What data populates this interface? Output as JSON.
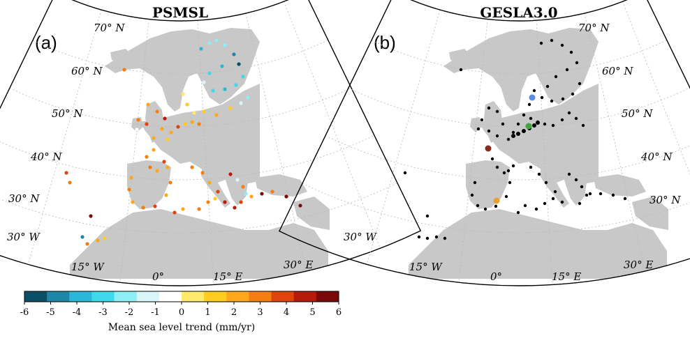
{
  "panels": [
    {
      "id": "a",
      "title": "PSMSL",
      "letter": "(a)",
      "lat_labels": [
        "70° N",
        "60° N",
        "50° N",
        "40° N",
        "30° N"
      ],
      "lon_labels": [
        "30° W",
        "15° W",
        "0°",
        "15° E",
        "30° E"
      ],
      "points_colored_by": "Mean sea level trend (mm/yr)"
    },
    {
      "id": "b",
      "title": "GESLA3.0",
      "letter": "(b)",
      "lat_labels": [
        "70° N",
        "60° N",
        "50° N",
        "40° N",
        "30° N"
      ],
      "lon_labels": [
        "30° W",
        "15° W",
        "0°",
        "15° E",
        "30° E"
      ],
      "highlight_colors": [
        "#5b8fe0",
        "#3fa63f",
        "#8a2a1a",
        "#e8a030"
      ]
    }
  ],
  "colorbar": {
    "label": "Mean sea level trend (mm/yr)",
    "ticks": [
      "-6",
      "-5",
      "-4",
      "-3",
      "-2",
      "-1",
      "0",
      "1",
      "2",
      "3",
      "4",
      "5",
      "6"
    ],
    "range": [
      -6,
      6
    ],
    "colors": [
      "#0a4f66",
      "#1e86a6",
      "#2ab7d8",
      "#3fd9ec",
      "#8deef5",
      "#d8f6f8",
      "#ffffff",
      "#ffe96a",
      "#ffcc22",
      "#ffa71a",
      "#f57e12",
      "#e0430c",
      "#b51a0a",
      "#7a0a0a"
    ]
  },
  "colors": {
    "land": "#c8c8c8",
    "ocean": "#ffffff",
    "gesla_points": "#000000"
  }
}
